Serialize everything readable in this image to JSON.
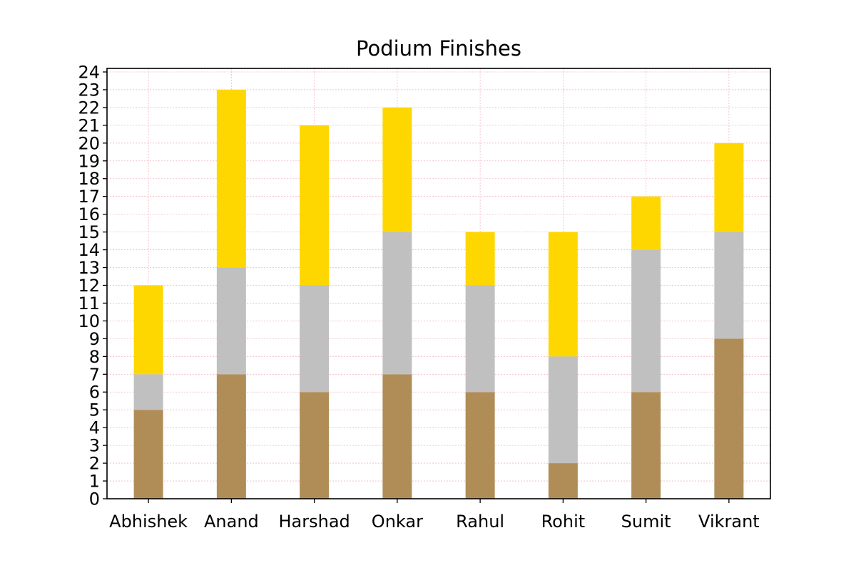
{
  "chart_data": {
    "type": "bar",
    "stacked": true,
    "title": "Podium Finishes",
    "xlabel": "",
    "ylabel": "",
    "categories": [
      "Abhishek",
      "Anand",
      "Harshad",
      "Onkar",
      "Rahul",
      "Rohit",
      "Sumit",
      "Vikrant"
    ],
    "series": [
      {
        "values": [
          5,
          7,
          6,
          7,
          6,
          2,
          6,
          9
        ],
        "color": "#b08d57"
      },
      {
        "values": [
          2,
          6,
          6,
          8,
          6,
          6,
          8,
          6
        ],
        "color": "#c0c0c0"
      },
      {
        "values": [
          5,
          10,
          9,
          7,
          3,
          7,
          3,
          5
        ],
        "color": "#ffd700"
      }
    ],
    "yticks": [
      "0",
      "1",
      "2",
      "3",
      "4",
      "5",
      "6",
      "7",
      "8",
      "9",
      "10",
      "11",
      "12",
      "13",
      "14",
      "15",
      "16",
      "17",
      "18",
      "19",
      "20",
      "21",
      "22",
      "23",
      "24"
    ],
    "ylim": [
      0,
      24.2
    ],
    "grid": true,
    "grid_color": "#f4b6c2",
    "legend": "none"
  }
}
